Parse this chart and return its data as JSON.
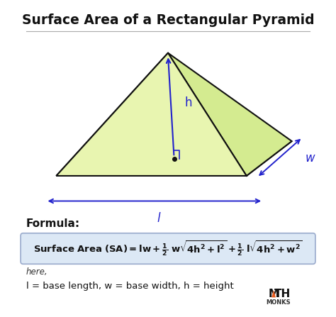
{
  "title": "Surface Area of a Rectangular Pyramid",
  "bg_color": "#ffffff",
  "pyramid_fill_front": "#e8f5b0",
  "pyramid_fill_side": "#d4eb90",
  "pyramid_fill_top": "#f0f8c8",
  "pyramid_edge_color": "#111111",
  "arrow_color": "#2222cc",
  "label_color": "#2222cc",
  "formula_box_color": "#dce8f5",
  "formula_box_edge": "#aabbcc",
  "formula_text": "Surface Area (SA) = lw + ½ w√4h² + l² + ½ l√4h² + w²",
  "here_text": "here,",
  "legend_text": "l = base length, w = base width, h = height",
  "formula_label": "Formula:"
}
